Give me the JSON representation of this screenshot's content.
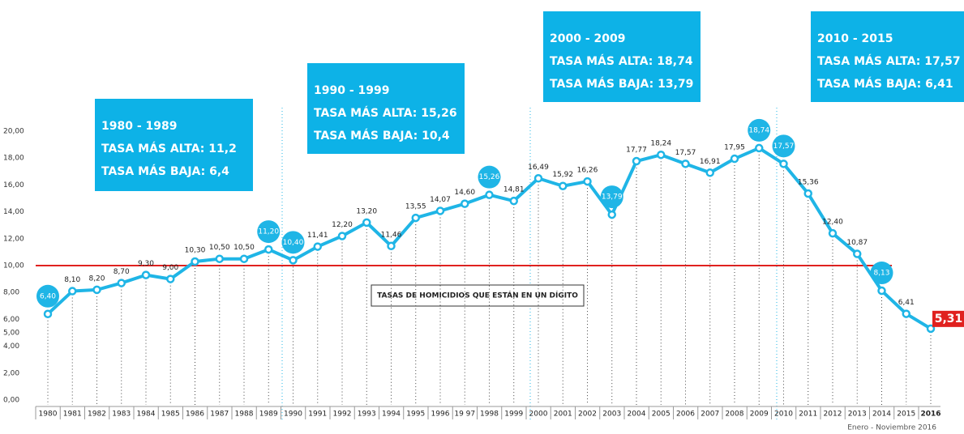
{
  "chart_data": {
    "type": "line",
    "categories": [
      "1980",
      "1981",
      "1982",
      "1983",
      "1984",
      "1985",
      "1986",
      "1987",
      "1988",
      "1989",
      "1990",
      "1991",
      "1992",
      "1993",
      "1994",
      "1995",
      "1996",
      "19 97",
      "1998",
      "1999",
      "2000",
      "2001",
      "2002",
      "2003",
      "2004",
      "2005",
      "2006",
      "2007",
      "2008",
      "2009",
      "2010",
      "2011",
      "2012",
      "2013",
      "2014",
      "2015",
      "2016"
    ],
    "series": [
      {
        "color": "#1fb5e6",
        "values": [
          6.4,
          8.1,
          8.2,
          8.7,
          9.3,
          9.0,
          10.3,
          10.5,
          10.5,
          11.2,
          10.4,
          11.41,
          12.2,
          13.2,
          11.46,
          13.55,
          14.07,
          14.6,
          15.26,
          14.81,
          16.49,
          15.92,
          16.26,
          13.79,
          17.77,
          18.24,
          17.57,
          16.91,
          17.95,
          18.74,
          17.57,
          15.36,
          12.4,
          10.87,
          8.13,
          6.41,
          5.31
        ],
        "value_labels": [
          "6,40",
          "8,10",
          "8,20",
          "8,70",
          "9,30",
          "9,00",
          "10,30",
          "10,50",
          "10,50",
          "11,20",
          "10,40",
          "11,41",
          "12,20",
          "13,20",
          "11,46",
          "13,55",
          "14,07",
          "14,60",
          "15,26",
          "14,81",
          "16,49",
          "15,92",
          "16,26",
          "13,79",
          "17,77",
          "18,24",
          "17,57",
          "16,91",
          "17,95",
          "18,74",
          "17,57",
          "15,36",
          "12,40",
          "10,87",
          "8,13",
          "6,41",
          "5,31"
        ]
      }
    ],
    "highlighted": [
      0,
      9,
      10,
      18,
      23,
      29,
      30,
      34
    ],
    "last_color": "#e0211f",
    "ylim": [
      0,
      20
    ],
    "yticks": [
      {
        "value": 20,
        "label": "20,00"
      },
      {
        "value": 18,
        "label": "18,00"
      },
      {
        "value": 16,
        "label": "16,00"
      },
      {
        "value": 14,
        "label": "14,00"
      },
      {
        "value": 12,
        "label": "12,00"
      },
      {
        "value": 10,
        "label": "10,00"
      },
      {
        "value": 8,
        "label": "8,00"
      },
      {
        "value": 6,
        "label": "6,00"
      },
      {
        "value": 5,
        "label": "5,00"
      },
      {
        "value": 4,
        "label": "4,00"
      },
      {
        "value": 2,
        "label": "2,00"
      },
      {
        "value": 0,
        "label": "0,00"
      }
    ],
    "threshold": {
      "value": 10,
      "label": "TASAS DE HOMICIDIOS QUE ESTÁN EN UN DÍGITO",
      "color": "#e0211f"
    },
    "annotations": [
      {
        "lines": [
          "1980 - 1989",
          "TASA MÁS ALTA: 11,2",
          "TASA MÁS BAJA: 6,4"
        ]
      },
      {
        "lines": [
          "1990 - 1999",
          "TASA MÁS ALTA: 15,26",
          "TASA MÁS BAJA: 10,4"
        ]
      },
      {
        "lines": [
          "2000 - 2009",
          "TASA MÁS ALTA: 18,74",
          "TASA MÁS BAJA: 13,79"
        ]
      },
      {
        "lines": [
          "2010 - 2015",
          "TASA MÁS ALTA: 17,57",
          "TASA MÁS BAJA: 6,41"
        ]
      }
    ],
    "footnote": "Enero - Noviembre 2016"
  }
}
